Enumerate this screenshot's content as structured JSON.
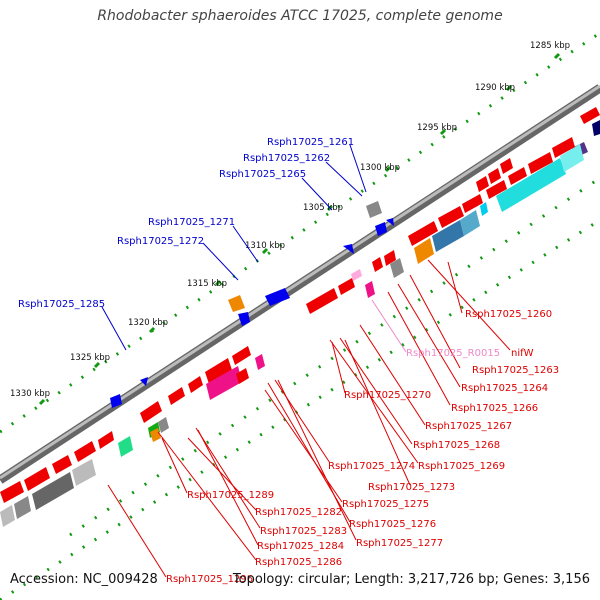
{
  "title": "Rhodobacter sphaeroides ATCC 17025, complete genome",
  "footer": {
    "accession": "Accession: NC_009428",
    "summary": "Topology: circular; Length: 3,217,726 bp; Genes: 3,156"
  },
  "kbp_ticks": [
    "1285 kbp",
    "1290 kbp",
    "1295 kbp",
    "1300 kbp",
    "1305 kbp",
    "1310 kbp",
    "1315 kbp",
    "1320 kbp",
    "1325 kbp",
    "1330 kbp"
  ],
  "labels_forward": [
    "Rsph17025_1261",
    "Rsph17025_1262",
    "Rsph17025_1265",
    "Rsph17025_1271",
    "Rsph17025_1272",
    "Rsph17025_1285"
  ],
  "labels_reverse": [
    "Rsph17025_1260",
    "nifW",
    "Rsph17025_1263",
    "Rsph17025_R0015",
    "Rsph17025_1264",
    "Rsph17025_1266",
    "Rsph17025_1270",
    "Rsph17025_1267",
    "Rsph17025_1268",
    "Rsph17025_1269",
    "Rsph17025_1274",
    "Rsph17025_1273",
    "Rsph17025_1289",
    "Rsph17025_1275",
    "Rsph17025_1282",
    "Rsph17025_1276",
    "Rsph17025_1283",
    "Rsph17025_1277",
    "Rsph17025_1284",
    "Rsph17025_1286",
    "Rsph17025_1296"
  ],
  "colors": {
    "forward_label": "#0000cc",
    "reverse_label": "#dd0000",
    "rna_label": "#ee88c8",
    "backbone": "#888888",
    "tick_green": "#119911"
  }
}
